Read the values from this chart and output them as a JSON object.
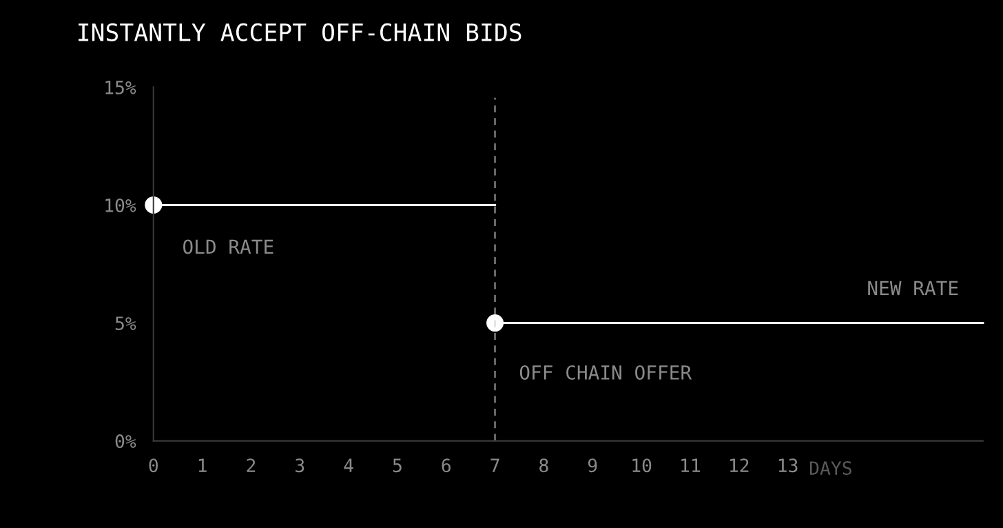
{
  "chart_data": {
    "type": "line",
    "title": "INSTANTLY ACCEPT OFF-CHAIN BIDS",
    "xlabel": "DAYS",
    "series": [
      {
        "name": "OLD RATE",
        "color": "#ffffff",
        "x": [
          0,
          7
        ],
        "values": [
          10,
          10
        ]
      },
      {
        "name": "NEW RATE",
        "color": "#ffffff",
        "x": [
          7,
          17
        ],
        "values": [
          5,
          5
        ]
      }
    ],
    "xlim": [
      0,
      17
    ],
    "xticks": [
      0,
      1,
      2,
      3,
      4,
      5,
      6,
      7,
      8,
      9,
      10,
      11,
      12,
      13
    ],
    "ylim": [
      0,
      15
    ],
    "yticks": [
      {
        "value": 0,
        "label": "0%"
      },
      {
        "value": 5,
        "label": "5%"
      },
      {
        "value": 10,
        "label": "10%"
      },
      {
        "value": 15,
        "label": "15%"
      }
    ],
    "ref_lines": [
      {
        "axis": "x",
        "value": 7,
        "label": "OFF CHAIN OFFER",
        "color": "#cccccc",
        "line_style": "dashed"
      }
    ],
    "marker": "circle",
    "line_style": "solid",
    "grid": false,
    "legend": false
  }
}
